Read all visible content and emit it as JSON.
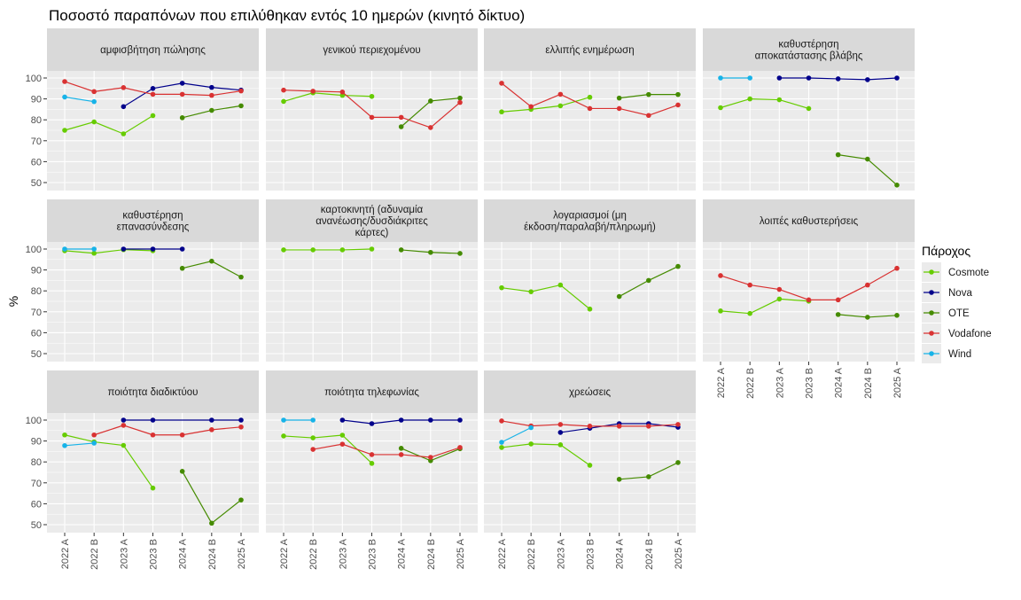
{
  "chart_data": {
    "type": "line",
    "title": "Ποσοστό παραπόνων που επιλύθηκαν εντός 10 ημερών (κινητό δίκτυο)",
    "xlabel": "",
    "ylabel": "%",
    "ylim": [
      50,
      100
    ],
    "yticks": [
      50,
      60,
      70,
      80,
      90,
      100
    ],
    "categories": [
      "2022 A",
      "2022 B",
      "2023 A",
      "2023 B",
      "2024 A",
      "2024 B",
      "2025 A"
    ],
    "legend": {
      "title": "Πάροχος",
      "placement": "right",
      "entries": [
        "Cosmote",
        "Nova",
        "OTE",
        "Vodafone",
        "Wind"
      ],
      "colors": {
        "Cosmote": "#66cc00",
        "Nova": "#00008b",
        "OTE": "#458b00",
        "Vodafone": "#d93232",
        "Wind": "#17b3e8"
      }
    },
    "grid": true,
    "facets": [
      {
        "title": "αμφισβήτηση πώλησης",
        "series": {
          "Cosmote": [
            75,
            79,
            73.3,
            82,
            null,
            null,
            null
          ],
          "Nova": [
            null,
            null,
            86.3,
            95,
            97.5,
            95.5,
            94.2
          ],
          "OTE": [
            null,
            null,
            null,
            null,
            81,
            84.5,
            86.7
          ],
          "Vodafone": [
            98.3,
            93.5,
            95.4,
            92.2,
            92.2,
            91.7,
            93.8
          ],
          "Wind": [
            90.9,
            88.7,
            null,
            null,
            null,
            null,
            null
          ]
        }
      },
      {
        "title": "γενικού περιεχομένου",
        "series": {
          "Cosmote": [
            88.8,
            92.9,
            91.7,
            91.2,
            null,
            null,
            null
          ],
          "OTE": [
            null,
            null,
            null,
            null,
            76.7,
            89,
            90.4
          ],
          "Vodafone": [
            94.2,
            93.7,
            93.3,
            81.2,
            81.2,
            76.3,
            88.3
          ]
        }
      },
      {
        "title": "ελλιπής ενημέρωση",
        "series": {
          "Cosmote": [
            83.8,
            85,
            86.7,
            90.8,
            null,
            null,
            null
          ],
          "OTE": [
            null,
            null,
            null,
            null,
            90.4,
            92.1,
            92.1
          ],
          "Vodafone": [
            97.5,
            86.3,
            92.2,
            85.4,
            85.4,
            82.1,
            87.1
          ]
        }
      },
      {
        "title": "καθυστέρηση\nαποκατάστασης βλάβης",
        "series": {
          "Cosmote": [
            85.8,
            90,
            89.6,
            85.4,
            null,
            null,
            null
          ],
          "Nova": [
            null,
            null,
            100,
            100,
            99.6,
            99.2,
            100
          ],
          "OTE": [
            null,
            null,
            null,
            null,
            63.3,
            61.2,
            48.8
          ],
          "Wind": [
            100,
            100,
            null,
            null,
            null,
            null,
            null
          ]
        }
      },
      {
        "title": "καθυστέρηση\nεπανασύνδεσης",
        "series": {
          "Cosmote": [
            99.2,
            98,
            99.7,
            99.2,
            null,
            null,
            null
          ],
          "Nova": [
            null,
            null,
            100,
            100,
            100,
            null,
            null
          ],
          "OTE": [
            null,
            null,
            null,
            null,
            90.8,
            94.2,
            86.6
          ],
          "Wind": [
            100,
            100,
            null,
            null,
            null,
            null,
            null
          ]
        }
      },
      {
        "title": "καρτοκινητή (αδυναμία\nανανέωσης/δυσδιάκριτες\nκάρτες)",
        "series": {
          "Cosmote": [
            99.6,
            99.6,
            99.6,
            100,
            null,
            null,
            null
          ],
          "OTE": [
            null,
            null,
            null,
            null,
            99.6,
            98.4,
            97.9
          ]
        }
      },
      {
        "title": "λογαριασμοί (μη\nέκδοση/παραλαβή/πληρωμή)",
        "series": {
          "Cosmote": [
            81.5,
            79.6,
            82.8,
            71.3,
            null,
            null,
            null
          ],
          "OTE": [
            null,
            null,
            null,
            null,
            77.3,
            85,
            91.7
          ]
        }
      },
      {
        "title": "λοιπές καθυστερήσεις",
        "series": {
          "Cosmote": [
            70.4,
            69.2,
            76.1,
            75.1,
            null,
            null,
            null
          ],
          "OTE": [
            null,
            null,
            null,
            null,
            68.7,
            67.4,
            68.3
          ],
          "Vodafone": [
            87.3,
            82.8,
            80.7,
            75.7,
            75.7,
            82.8,
            90.8
          ]
        }
      },
      {
        "title": "ποιότητα διαδικτύου",
        "series": {
          "Cosmote": [
            92.9,
            89.6,
            87.9,
            67.5,
            null,
            null,
            null
          ],
          "Nova": [
            null,
            null,
            100,
            100,
            null,
            100,
            100
          ],
          "OTE": [
            null,
            null,
            null,
            null,
            75.5,
            50.7,
            61.8
          ],
          "Vodafone": [
            null,
            92.9,
            97.5,
            92.9,
            92.9,
            95.4,
            96.7
          ],
          "Wind": [
            87.8,
            89,
            null,
            null,
            null,
            null,
            null
          ]
        }
      },
      {
        "title": "ποιότητα τηλεφωνίας",
        "series": {
          "Cosmote": [
            92.4,
            91.5,
            92.8,
            79.3,
            null,
            null,
            null
          ],
          "Nova": [
            null,
            null,
            100,
            98.3,
            100,
            100,
            100
          ],
          "OTE": [
            null,
            null,
            null,
            null,
            86.5,
            80.6,
            86.3
          ],
          "Vodafone": [
            null,
            86,
            88.5,
            83.5,
            83.5,
            82.2,
            86.9
          ],
          "Wind": [
            100,
            100,
            null,
            null,
            null,
            null,
            null
          ]
        }
      },
      {
        "title": "χρεώσεις",
        "series": {
          "Cosmote": [
            86.9,
            88.6,
            88.2,
            78.4,
            null,
            null,
            null
          ],
          "Nova": [
            null,
            null,
            94.1,
            96.1,
            98.3,
            98.3,
            96.6
          ],
          "OTE": [
            null,
            null,
            null,
            null,
            71.7,
            72.9,
            79.7
          ],
          "Vodafone": [
            99.6,
            97.2,
            97.9,
            97.1,
            97.1,
            97.1,
            97.9
          ],
          "Wind": [
            89.4,
            96.4,
            null,
            null,
            null,
            null,
            null
          ]
        }
      }
    ]
  }
}
